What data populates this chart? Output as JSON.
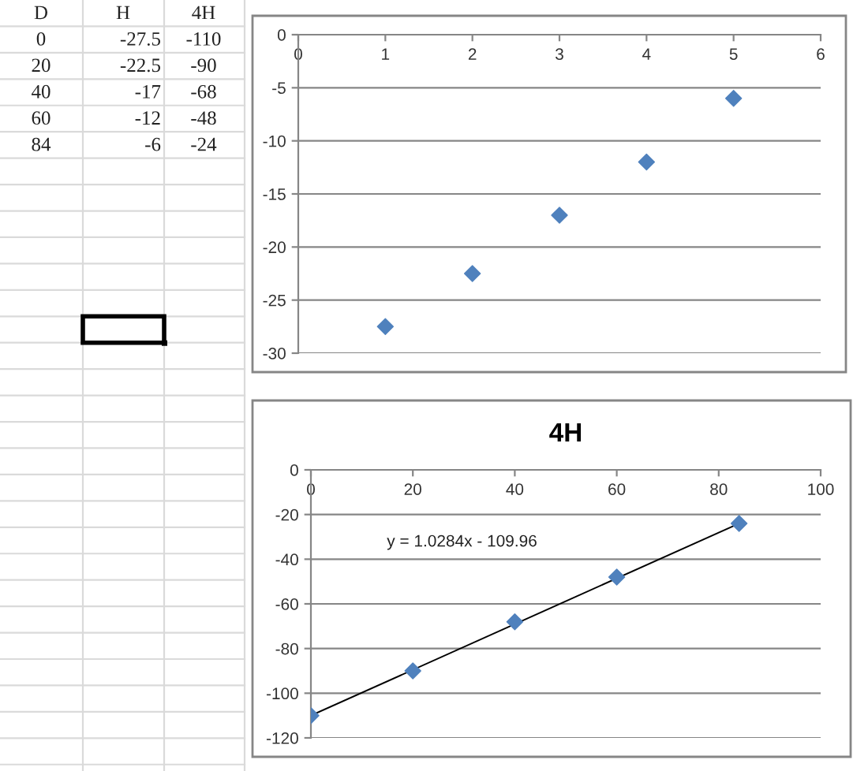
{
  "chart_data": [
    {
      "type": "other",
      "annotations": [
        "D",
        "H",
        "4H",
        "0",
        "-27.5",
        "-110",
        "20",
        "-22.5",
        "-90",
        "40",
        "-17",
        "-68",
        "60",
        "-12",
        "-48",
        "84",
        "-6",
        "-24"
      ]
    },
    {
      "type": "scatter",
      "x": [
        1,
        2,
        3,
        4,
        5
      ],
      "values": [
        -27.5,
        -22.5,
        -17,
        -12,
        -6
      ],
      "color": "#4f81bd",
      "marker": "diamond",
      "xlim": [
        0,
        6
      ],
      "xticks": [
        0,
        1,
        2,
        3,
        4,
        5,
        6
      ],
      "ylim": [
        -30,
        0
      ],
      "yticks": [
        -30,
        -25,
        -20,
        -15,
        -10,
        -5,
        0
      ],
      "grid": "y"
    },
    {
      "type": "scatter",
      "title": "4H",
      "series": [
        {
          "type": "scatter",
          "x": [
            0,
            20,
            40,
            60,
            84
          ],
          "values": [
            -110,
            -90,
            -68,
            -48,
            -24
          ],
          "color": "#4f81bd",
          "marker": "diamond"
        },
        {
          "type": "line",
          "x": [
            0,
            84
          ],
          "values": [
            -110,
            -24
          ],
          "color": "#000000"
        }
      ],
      "annotations": [
        "y = 1.0284x - 109.96"
      ],
      "xlim": [
        0,
        100
      ],
      "xticks": [
        0,
        20,
        40,
        60,
        80,
        100
      ],
      "ylim": [
        -120,
        0
      ],
      "yticks": [
        -120,
        -100,
        -80,
        -60,
        -40,
        -20,
        0
      ],
      "grid": "y"
    }
  ]
}
